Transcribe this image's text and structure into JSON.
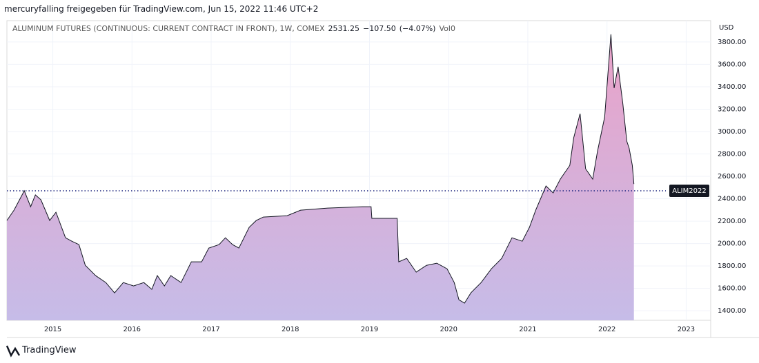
{
  "header": "mercuryfalling freigegeben für TradingView.com, Jun 15, 2022 11:46 UTC+2",
  "footer": "TradingView",
  "chart_data": {
    "type": "area",
    "title": "ALUMINUM FUTURES (CONTINUOUS: CURRENT CONTRACT IN FRONT), 1W, COMEX",
    "last": "2531.25",
    "change": "−107.50",
    "change_pct": "(−4.07%)",
    "volume": "Vol0",
    "y_unit": "USD",
    "x": [
      2014.42,
      2014.51,
      2014.64,
      2014.72,
      2014.78,
      2014.85,
      2014.96,
      2015.04,
      2015.16,
      2015.24,
      2015.33,
      2015.41,
      2015.54,
      2015.67,
      2015.78,
      2015.89,
      2016.02,
      2016.15,
      2016.25,
      2016.32,
      2016.41,
      2016.49,
      2016.62,
      2016.75,
      2016.88,
      2016.97,
      2017.1,
      2017.18,
      2017.27,
      2017.35,
      2017.48,
      2017.57,
      2017.66,
      2017.96,
      2018.13,
      2018.47,
      2018.91,
      2019.02,
      2019.03,
      2019.35,
      2019.37,
      2019.47,
      2019.59,
      2019.72,
      2019.85,
      2019.98,
      2020.07,
      2020.13,
      2020.2,
      2020.28,
      2020.41,
      2020.54,
      2020.67,
      2020.8,
      2020.93,
      2021.02,
      2021.1,
      2021.23,
      2021.32,
      2021.41,
      2021.53,
      2021.58,
      2021.66,
      2021.73,
      2021.82,
      2021.88,
      2021.97,
      2022.05,
      2022.09,
      2022.14,
      2022.2,
      2022.25,
      2022.28,
      2022.32,
      2022.34
    ],
    "series": [
      {
        "name": "ALIM2022",
        "color": "#131722",
        "values": [
          2206,
          2298,
          2471,
          2329,
          2434,
          2391,
          2206,
          2280,
          2052,
          2021,
          1991,
          1806,
          1714,
          1652,
          1560,
          1652,
          1622,
          1652,
          1591,
          1714,
          1622,
          1714,
          1652,
          1837,
          1837,
          1960,
          1991,
          2052,
          1991,
          1960,
          2145,
          2206,
          2237,
          2249,
          2298,
          2317,
          2329,
          2329,
          2225,
          2225,
          1837,
          1868,
          1745,
          1806,
          1825,
          1775,
          1652,
          1498,
          1468,
          1560,
          1652,
          1775,
          1868,
          2052,
          2021,
          2145,
          2298,
          2514,
          2452,
          2575,
          2698,
          2945,
          3160,
          2668,
          2575,
          2822,
          3129,
          3868,
          3388,
          3579,
          3252,
          2914,
          2852,
          2698,
          2531.25
        ]
      }
    ],
    "fill_top": "#eaa2c8",
    "fill_bottom": "#c6bce8",
    "reference_line": {
      "value": 2471,
      "label": "ALIM2022",
      "color": "#1a237e"
    },
    "xlim": [
      2014.42,
      2023.31
    ],
    "xticks": [
      2015,
      2016,
      2017,
      2018,
      2019,
      2020,
      2021,
      2022,
      2023
    ],
    "ylim": [
      1315,
      3990
    ],
    "yticks": [
      {
        "value": 1400,
        "label": "1400.00"
      },
      {
        "value": 1600,
        "label": "1600.00"
      },
      {
        "value": 1800,
        "label": "1800.00"
      },
      {
        "value": 2000,
        "label": "2000.00"
      },
      {
        "value": 2200,
        "label": "2200.00"
      },
      {
        "value": 2400,
        "label": "2400.00"
      },
      {
        "value": 2600,
        "label": "2600.00"
      },
      {
        "value": 2800,
        "label": "2800.00"
      },
      {
        "value": 3000,
        "label": "3000.00"
      },
      {
        "value": 3200,
        "label": "3200.00"
      },
      {
        "value": 3400,
        "label": "3400.00"
      },
      {
        "value": 3600,
        "label": "3600.00"
      },
      {
        "value": 3800,
        "label": "3800.00"
      }
    ],
    "grid": true
  }
}
